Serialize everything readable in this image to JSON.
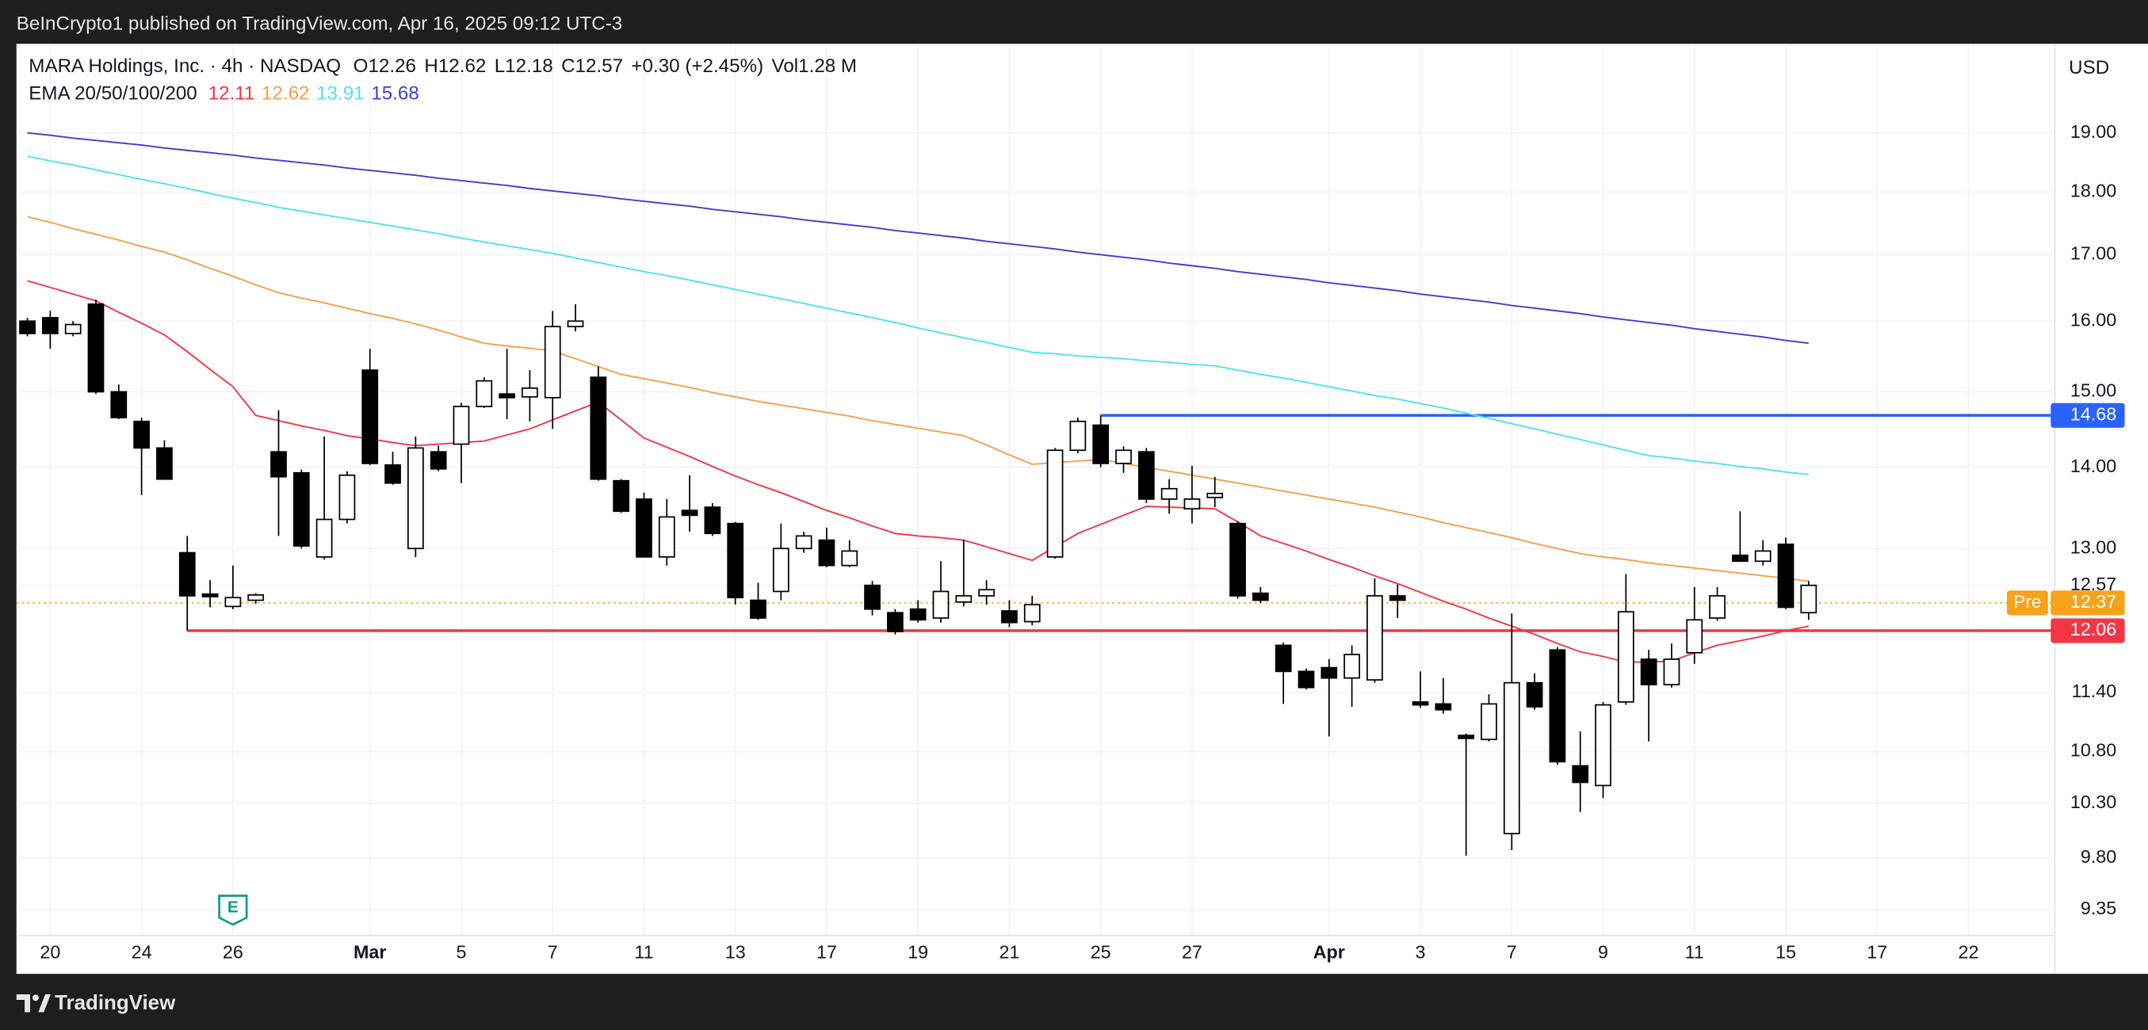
{
  "header": {
    "attribution": "BeInCrypto1 published on TradingView.com, Apr 16, 2025 09:12 UTC-3",
    "symbol": "MARA Holdings, Inc. · 4h · NASDAQ",
    "open": "O12.26",
    "high": "H12.62",
    "low": "L12.18",
    "close": "C12.57",
    "change": "+0.30 (+2.45%)",
    "volume": "Vol1.28 M",
    "currency": "USD"
  },
  "footer": {
    "brand": "TradingView"
  },
  "chart_data": {
    "type": "candlestick",
    "log_scale": true,
    "grid": true,
    "up_color": "#ffffff",
    "down_color": "#000000",
    "wick_color": "#000000",
    "categories": [
      null,
      "20",
      null,
      null,
      null,
      "24",
      null,
      null,
      null,
      "26",
      null,
      null,
      null,
      null,
      null,
      "Mar",
      null,
      null,
      null,
      "5",
      null,
      null,
      null,
      "7",
      null,
      null,
      null,
      "11",
      null,
      null,
      null,
      "13",
      null,
      null,
      null,
      "17",
      null,
      null,
      null,
      "19",
      null,
      null,
      null,
      "21",
      null,
      null,
      null,
      "25",
      null,
      null,
      null,
      "27",
      null,
      null,
      null,
      null,
      null,
      "Apr",
      null,
      null,
      null,
      "3",
      null,
      null,
      null,
      "7",
      null,
      null,
      null,
      "9",
      null,
      null,
      null,
      "11",
      null,
      null,
      null,
      "15",
      null,
      null,
      null,
      "17",
      null,
      null,
      null,
      "22"
    ],
    "open": [
      16.0,
      16.05,
      15.82,
      16.25,
      15.0,
      14.6,
      14.25,
      12.95,
      12.47,
      12.33,
      12.4,
      14.2,
      13.93,
      12.9,
      13.35,
      15.3,
      14.03,
      13.0,
      14.2,
      14.3,
      14.8,
      14.97,
      14.93,
      14.92,
      15.92,
      15.2,
      13.83,
      13.6,
      12.9,
      13.46,
      13.5,
      13.3,
      12.4,
      12.5,
      13.0,
      13.1,
      12.8,
      12.57,
      12.26,
      12.3,
      12.2,
      12.38,
      12.45,
      12.28,
      12.16,
      12.9,
      14.22,
      14.55,
      14.05,
      14.2,
      13.6,
      13.48,
      13.62,
      13.3,
      12.48,
      11.9,
      11.62,
      11.66,
      11.55,
      11.53,
      12.45,
      11.3,
      11.28,
      10.96,
      10.92,
      10.02,
      11.5,
      11.85,
      10.66,
      10.47,
      11.3,
      11.75,
      11.48,
      11.82,
      12.2,
      12.92,
      12.85,
      13.05,
      12.26,
      null,
      null,
      null,
      null,
      null,
      null,
      null
    ],
    "high": [
      16.05,
      16.15,
      16.0,
      16.32,
      15.1,
      14.65,
      14.35,
      13.15,
      12.63,
      12.8,
      12.48,
      14.75,
      13.97,
      14.4,
      13.95,
      15.6,
      14.2,
      14.4,
      14.28,
      14.85,
      15.2,
      15.6,
      15.3,
      16.15,
      16.25,
      15.35,
      13.85,
      13.68,
      13.6,
      13.9,
      13.55,
      13.32,
      12.6,
      13.3,
      13.2,
      13.25,
      13.1,
      12.62,
      12.3,
      12.4,
      12.85,
      13.1,
      12.63,
      12.4,
      12.45,
      14.25,
      14.65,
      14.68,
      14.27,
      14.25,
      13.85,
      14.02,
      13.88,
      13.33,
      12.55,
      11.93,
      11.65,
      11.75,
      11.9,
      12.65,
      12.58,
      11.62,
      11.55,
      10.98,
      11.38,
      12.25,
      11.6,
      11.88,
      11.0,
      11.3,
      12.7,
      11.85,
      11.92,
      12.55,
      12.55,
      13.45,
      13.1,
      13.13,
      12.62,
      null,
      null,
      null,
      null,
      null,
      null,
      null
    ],
    "low": [
      15.78,
      15.6,
      15.78,
      14.97,
      14.63,
      13.65,
      13.85,
      12.06,
      12.32,
      12.3,
      12.36,
      13.15,
      13.0,
      12.87,
      13.3,
      14.03,
      13.78,
      12.9,
      13.95,
      13.8,
      14.78,
      14.63,
      14.6,
      14.5,
      15.85,
      13.83,
      13.43,
      12.9,
      12.8,
      13.2,
      13.15,
      12.35,
      12.18,
      12.4,
      12.95,
      12.78,
      12.78,
      12.23,
      12.02,
      12.15,
      12.15,
      12.33,
      12.35,
      12.1,
      12.12,
      12.88,
      14.18,
      14.0,
      13.93,
      13.55,
      13.42,
      13.3,
      13.5,
      12.42,
      12.37,
      11.28,
      11.43,
      10.95,
      11.25,
      11.5,
      12.2,
      11.24,
      11.18,
      9.82,
      10.9,
      9.87,
      11.22,
      10.67,
      10.22,
      10.35,
      11.27,
      10.9,
      11.45,
      11.7,
      12.17,
      12.85,
      12.8,
      12.3,
      12.18,
      null,
      null,
      null,
      null,
      null,
      null,
      null
    ],
    "close": [
      15.82,
      15.82,
      15.95,
      15.0,
      14.65,
      14.25,
      13.85,
      12.45,
      12.44,
      12.43,
      12.46,
      13.88,
      13.03,
      13.35,
      13.9,
      14.05,
      13.8,
      14.25,
      13.98,
      14.8,
      15.15,
      14.92,
      15.05,
      15.92,
      16.0,
      13.85,
      13.45,
      12.9,
      13.38,
      13.4,
      13.18,
      12.43,
      12.2,
      13.0,
      13.15,
      12.8,
      12.97,
      12.3,
      12.05,
      12.18,
      12.5,
      12.45,
      12.52,
      12.15,
      12.35,
      14.22,
      14.6,
      14.05,
      14.22,
      13.6,
      13.73,
      13.6,
      13.67,
      12.45,
      12.4,
      11.62,
      11.45,
      11.55,
      11.8,
      12.45,
      12.4,
      11.27,
      11.22,
      10.93,
      11.28,
      11.5,
      11.25,
      10.7,
      10.5,
      11.27,
      12.27,
      11.48,
      11.75,
      12.18,
      12.45,
      12.85,
      12.97,
      12.32,
      12.57,
      null,
      null,
      null,
      null,
      null,
      null,
      null
    ],
    "indicator": {
      "name": "EMA 20/50/100/200",
      "series": [
        {
          "color": "#f23645",
          "values": [
            16.6,
            16.5,
            16.4,
            16.3,
            16.13,
            15.97,
            15.8,
            15.56,
            15.31,
            15.07,
            14.68,
            14.61,
            14.54,
            14.48,
            14.41,
            14.37,
            14.32,
            14.28,
            14.3,
            14.32,
            14.34,
            14.42,
            14.5,
            14.62,
            14.74,
            14.86,
            14.62,
            14.38,
            14.26,
            14.14,
            14.01,
            13.89,
            13.78,
            13.68,
            13.57,
            13.46,
            13.37,
            13.27,
            13.18,
            13.15,
            13.13,
            13.1,
            13.02,
            12.94,
            12.86,
            13.02,
            13.18,
            13.29,
            13.4,
            13.51,
            13.5,
            13.49,
            13.48,
            13.32,
            13.15,
            13.06,
            12.97,
            12.87,
            12.78,
            12.68,
            12.59,
            12.49,
            12.39,
            12.3,
            12.2,
            12.11,
            12.02,
            11.92,
            11.83,
            11.78,
            11.72,
            11.72,
            11.73,
            11.82,
            11.9,
            11.95,
            12.0,
            12.06,
            12.11,
            null,
            null,
            null,
            null,
            null,
            null,
            null
          ]
        },
        {
          "color": "#f5a04a",
          "values": [
            17.6,
            17.51,
            17.41,
            17.32,
            17.23,
            17.13,
            17.04,
            16.92,
            16.79,
            16.67,
            16.54,
            16.42,
            16.34,
            16.27,
            16.19,
            16.11,
            16.04,
            15.96,
            15.87,
            15.77,
            15.68,
            15.64,
            15.61,
            15.57,
            15.46,
            15.35,
            15.24,
            15.18,
            15.12,
            15.06,
            14.99,
            14.93,
            14.87,
            14.82,
            14.77,
            14.72,
            14.67,
            14.61,
            14.56,
            14.51,
            14.46,
            14.41,
            14.29,
            14.16,
            14.04,
            14.06,
            14.08,
            14.1,
            14.05,
            14.0,
            13.95,
            13.9,
            13.85,
            13.8,
            13.75,
            13.7,
            13.65,
            13.6,
            13.55,
            13.5,
            13.44,
            13.38,
            13.31,
            13.25,
            13.19,
            13.13,
            13.06,
            13.0,
            12.94,
            12.9,
            12.87,
            12.83,
            12.8,
            12.77,
            12.74,
            12.71,
            12.68,
            12.65,
            12.62,
            null,
            null,
            null,
            null,
            null,
            null,
            null
          ]
        },
        {
          "color": "#4fe3ee",
          "values": [
            18.6,
            18.52,
            18.45,
            18.37,
            18.29,
            18.21,
            18.14,
            18.06,
            17.98,
            17.9,
            17.83,
            17.75,
            17.69,
            17.63,
            17.57,
            17.51,
            17.45,
            17.39,
            17.33,
            17.26,
            17.2,
            17.14,
            17.08,
            17.02,
            16.95,
            16.88,
            16.81,
            16.74,
            16.68,
            16.61,
            16.54,
            16.47,
            16.4,
            16.33,
            16.26,
            16.19,
            16.12,
            16.05,
            15.98,
            15.9,
            15.83,
            15.76,
            15.69,
            15.62,
            15.55,
            15.53,
            15.5,
            15.48,
            15.46,
            15.43,
            15.41,
            15.38,
            15.36,
            15.3,
            15.24,
            15.19,
            15.13,
            15.07,
            15.01,
            14.95,
            14.9,
            14.84,
            14.78,
            14.71,
            14.64,
            14.57,
            14.5,
            14.43,
            14.36,
            14.29,
            14.22,
            14.15,
            14.12,
            14.08,
            14.05,
            14.01,
            13.98,
            13.94,
            13.91,
            null,
            null,
            null,
            null,
            null,
            null,
            null
          ]
        },
        {
          "color": "#3f3fcc",
          "values": [
            19.0,
            18.96,
            18.91,
            18.87,
            18.83,
            18.79,
            18.74,
            18.7,
            18.66,
            18.62,
            18.57,
            18.53,
            18.49,
            18.45,
            18.4,
            18.36,
            18.32,
            18.28,
            18.23,
            18.19,
            18.15,
            18.11,
            18.06,
            18.02,
            17.98,
            17.94,
            17.89,
            17.85,
            17.81,
            17.77,
            17.72,
            17.68,
            17.64,
            17.6,
            17.55,
            17.51,
            17.47,
            17.43,
            17.38,
            17.34,
            17.3,
            17.26,
            17.21,
            17.17,
            17.13,
            17.09,
            17.04,
            17.0,
            16.96,
            16.92,
            16.87,
            16.83,
            16.79,
            16.74,
            16.7,
            16.66,
            16.62,
            16.57,
            16.53,
            16.49,
            16.45,
            16.4,
            16.36,
            16.32,
            16.28,
            16.23,
            16.19,
            16.15,
            16.11,
            16.06,
            16.02,
            15.98,
            15.94,
            15.89,
            15.85,
            15.81,
            15.77,
            15.72,
            15.68,
            null,
            null,
            null,
            null,
            null,
            null,
            null
          ]
        }
      ]
    },
    "price_lines": [
      {
        "value": 14.68,
        "color": "#2962ff",
        "style": "solid"
      },
      {
        "value": 12.37,
        "color": "#f7a21b",
        "style": "dotted",
        "label": "Pre"
      },
      {
        "value": 12.06,
        "color": "#f23645",
        "style": "solid"
      }
    ],
    "events": [
      {
        "label": "E"
      }
    ],
    "ylim": [
      9.13,
      20.61
    ],
    "yticks": [
      {
        "value": 19,
        "label": "19.00"
      },
      {
        "value": 18,
        "label": "18.00"
      },
      {
        "value": 17,
        "label": "17.00"
      },
      {
        "value": 16,
        "label": "16.00"
      },
      {
        "value": 15,
        "label": "15.00"
      },
      {
        "value": 14,
        "label": "14.00"
      },
      {
        "value": 13,
        "label": "13.00"
      },
      12.57,
      {
        "value": 11.4,
        "label": "11.40"
      },
      {
        "value": 10.8,
        "label": "10.80"
      },
      {
        "value": 10.3,
        "label": "10.30"
      },
      {
        "value": 9.8,
        "label": "9.80"
      },
      9.35
    ]
  }
}
